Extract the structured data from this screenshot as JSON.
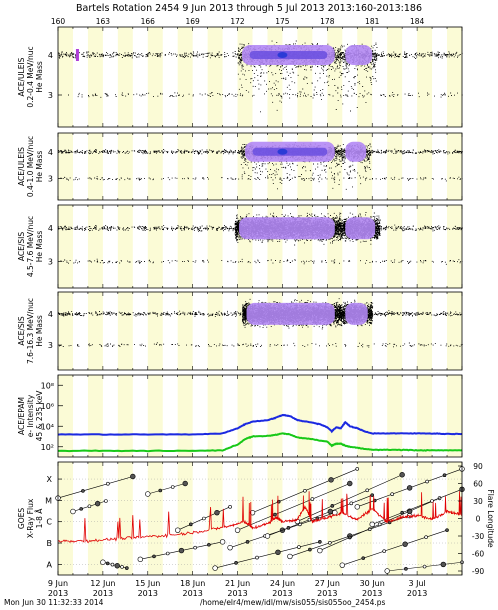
{
  "header": {
    "title": "Bartels Rotation 2454    9 Jun 2013 through 5 Jul 2013    2013:160-2013:186"
  },
  "footer": {
    "left": "Mon Jun 30 11:32:33 2014",
    "right": "/home/elr4/mew/idl/mw/sis055/sis055oo_2454.ps"
  },
  "colors": {
    "stripe": "#fbfbd6",
    "dots": "#000000",
    "purple_core": "#b388f5",
    "blue_core": "#2b3bd6",
    "epam_blue": "#1b29e0",
    "epam_green": "#18c818",
    "xray_red": "#e00000"
  },
  "chart_data": {
    "type": "multi-panel time series",
    "x_axis": {
      "range_doy": [
        160,
        187
      ],
      "top_ticks": [
        "160",
        "163",
        "166",
        "169",
        "172",
        "175",
        "178",
        "181",
        "184"
      ],
      "top_tick_doy": [
        160,
        163,
        166,
        169,
        172,
        175,
        178,
        181,
        184
      ],
      "bottom_ticks": [
        {
          "day": "9 Jun",
          "year": "2013",
          "doy": 160
        },
        {
          "day": "12 Jun",
          "year": "2013",
          "doy": 163
        },
        {
          "day": "15 Jun",
          "year": "2013",
          "doy": 166
        },
        {
          "day": "18 Jun",
          "year": "2013",
          "doy": 169
        },
        {
          "day": "21 Jun",
          "year": "2013",
          "doy": 172
        },
        {
          "day": "24 Jun",
          "year": "2013",
          "doy": 175
        },
        {
          "day": "27 Jun",
          "year": "2013",
          "doy": 178
        },
        {
          "day": "30 Jun",
          "year": "2013",
          "doy": 181
        },
        {
          "day": "3 Jul",
          "year": "2013",
          "doy": 184
        }
      ]
    },
    "panels": [
      {
        "id": "uleis1",
        "type": "scatter",
        "label_lines": [
          "ACE/ULEIS",
          "0.2-0.4 MeV/nuc",
          "He Mass"
        ],
        "y_ticks": [
          "4",
          "3"
        ],
        "y_tick_values": [
          4,
          3
        ],
        "ylim": [
          2.2,
          4.7
        ],
        "band_doy": [
          172.0,
          181.3
        ]
      },
      {
        "id": "uleis2",
        "type": "scatter",
        "label_lines": [
          "ACE/ULEIS",
          "0.4-1.0 MeV/nuc",
          "He Mass"
        ],
        "y_ticks": [
          "4",
          "3"
        ],
        "y_tick_values": [
          4,
          3
        ],
        "ylim": [
          2.2,
          4.7
        ],
        "band_doy": [
          172.2,
          180.9
        ]
      },
      {
        "id": "sis1",
        "type": "scatter",
        "label_lines": [
          "ACE/SIS",
          "4.5-7.6 MeV/nuc",
          "He Mass"
        ],
        "y_ticks": [
          "4",
          "3"
        ],
        "y_tick_values": [
          4,
          3
        ],
        "ylim": [
          2.2,
          4.7
        ],
        "band_doy": [
          171.8,
          181.5
        ]
      },
      {
        "id": "sis2",
        "type": "scatter",
        "label_lines": [
          "ACE/SIS",
          "7.6-16.3 MeV/nuc",
          "He Mass"
        ],
        "y_ticks": [
          "4",
          "3"
        ],
        "y_tick_values": [
          4,
          3
        ],
        "ylim": [
          2.2,
          4.7
        ],
        "band_doy": [
          172.3,
          181.0
        ]
      },
      {
        "id": "epam",
        "type": "line",
        "label_lines": [
          "ACE/EPAM",
          "e- Intensity",
          "45 & 235 keV"
        ],
        "y_ticks": [
          "10⁸",
          "10⁶",
          "10⁴",
          "10²"
        ],
        "y_tick_exp": [
          8,
          6,
          4,
          2
        ],
        "ylim_exp": [
          1,
          9
        ],
        "series": [
          {
            "color": "#1b29e0",
            "doy": [
              160,
              163,
              166,
              169,
              171,
              172,
              172.5,
              173,
              174,
              174.5,
              175,
              175.5,
              176,
              177,
              177.5,
              178,
              178.3,
              178.6,
              178.9,
              179.2,
              179.5,
              180,
              180.5,
              181,
              182,
              183,
              184,
              185,
              186,
              187
            ],
            "log10": [
              3.2,
              3.2,
              3.2,
              3.2,
              3.3,
              3.8,
              4.2,
              4.45,
              4.6,
              4.8,
              5.1,
              5.0,
              4.6,
              4.35,
              4.2,
              3.9,
              3.5,
              3.9,
              3.8,
              4.4,
              4.0,
              3.8,
              3.5,
              3.3,
              3.3,
              3.3,
              3.3,
              3.3,
              3.25,
              3.25
            ]
          },
          {
            "color": "#18c818",
            "doy": [
              160,
              163,
              166,
              169,
              171,
              172,
              172.5,
              173,
              174,
              174.5,
              175,
              175.5,
              176,
              177,
              177.5,
              178,
              178.3,
              178.6,
              178.9,
              179.2,
              179.5,
              180,
              180.5,
              181,
              182,
              183,
              184,
              185,
              186,
              187
            ],
            "log10": [
              1.6,
              1.6,
              1.6,
              1.6,
              1.65,
              2.2,
              2.75,
              3.0,
              3.05,
              3.15,
              3.3,
              3.2,
              2.9,
              2.75,
              2.6,
              2.5,
              2.1,
              2.3,
              2.3,
              2.1,
              2.0,
              1.9,
              1.8,
              1.7,
              1.7,
              1.7,
              1.65,
              1.65,
              1.65,
              1.65
            ]
          }
        ]
      },
      {
        "id": "goes",
        "type": "line",
        "label_lines": [
          "GOES",
          "X-Ray Flux",
          "1-8 Å"
        ],
        "y_class_ticks": [
          "X",
          "M",
          "C",
          "B",
          "A"
        ],
        "y_class_log": [
          -4,
          -5,
          -6,
          -7,
          -8
        ],
        "ylim_log": [
          -8.5,
          -3.2
        ],
        "right_axis": {
          "label": "Flare Longitude",
          "ticks": [
            "90",
            "60",
            "30",
            "0",
            "-30",
            "-60",
            "-90"
          ],
          "tick_values": [
            90,
            60,
            30,
            0,
            -30,
            -60,
            -90
          ],
          "range": [
            -90,
            90
          ]
        },
        "xray": {
          "doy": [
            160,
            162,
            164,
            166,
            168,
            170,
            171.5,
            172.5,
            173,
            174,
            174.6,
            175,
            176,
            176.5,
            177,
            178,
            179,
            180,
            181,
            182,
            183,
            184,
            185,
            186,
            187
          ],
          "log10": [
            -6.9,
            -6.9,
            -6.8,
            -6.7,
            -6.6,
            -6.4,
            -6.2,
            -6.0,
            -6.3,
            -6.1,
            -5.8,
            -6.0,
            -5.9,
            -5.3,
            -6.0,
            -5.8,
            -5.6,
            -5.9,
            -5.4,
            -6.0,
            -5.8,
            -5.7,
            -5.9,
            -5.5,
            -5.7
          ]
        },
        "flare_tracks": [
          {
            "doy": [
              160.0,
              165.0
            ],
            "lon": [
              35,
              72
            ]
          },
          {
            "doy": [
              161.0,
              163.2
            ],
            "lon": [
              12,
              30
            ]
          },
          {
            "doy": [
              163.0,
              164.6
            ],
            "lon": [
              -75,
              -85
            ]
          },
          {
            "doy": [
              165.5,
              171.0
            ],
            "lon": [
              -70,
              -40
            ]
          },
          {
            "doy": [
              166.0,
              168.5
            ],
            "lon": [
              42,
              60
            ]
          },
          {
            "doy": [
              168.0,
              171.5
            ],
            "lon": [
              -20,
              20
            ]
          },
          {
            "doy": [
              170.5,
              177.5
            ],
            "lon": [
              -85,
              -40
            ]
          },
          {
            "doy": [
              171.5,
              178.5
            ],
            "lon": [
              -50,
              10
            ]
          },
          {
            "doy": [
              172.0,
              179.5
            ],
            "lon": [
              -20,
              60
            ]
          },
          {
            "doy": [
              173.0,
              180.0
            ],
            "lon": [
              10,
              85
            ]
          },
          {
            "doy": [
              174.0,
              181.0
            ],
            "lon": [
              -30,
              40
            ]
          },
          {
            "doy": [
              175.5,
              183.5
            ],
            "lon": [
              -65,
              5
            ]
          },
          {
            "doy": [
              176.0,
              183.0
            ],
            "lon": [
              -5,
              75
            ]
          },
          {
            "doy": [
              177.5,
              185.5
            ],
            "lon": [
              -55,
              35
            ]
          },
          {
            "doy": [
              179.0,
              186.0
            ],
            "lon": [
              -80,
              -20
            ]
          },
          {
            "doy": [
              180.0,
              187.0
            ],
            "lon": [
              20,
              85
            ]
          },
          {
            "doy": [
              181.0,
              187.0
            ],
            "lon": [
              -10,
              50
            ]
          },
          {
            "doy": [
              182.0,
              187.0
            ],
            "lon": [
              -90,
              -75
            ]
          }
        ]
      }
    ]
  }
}
